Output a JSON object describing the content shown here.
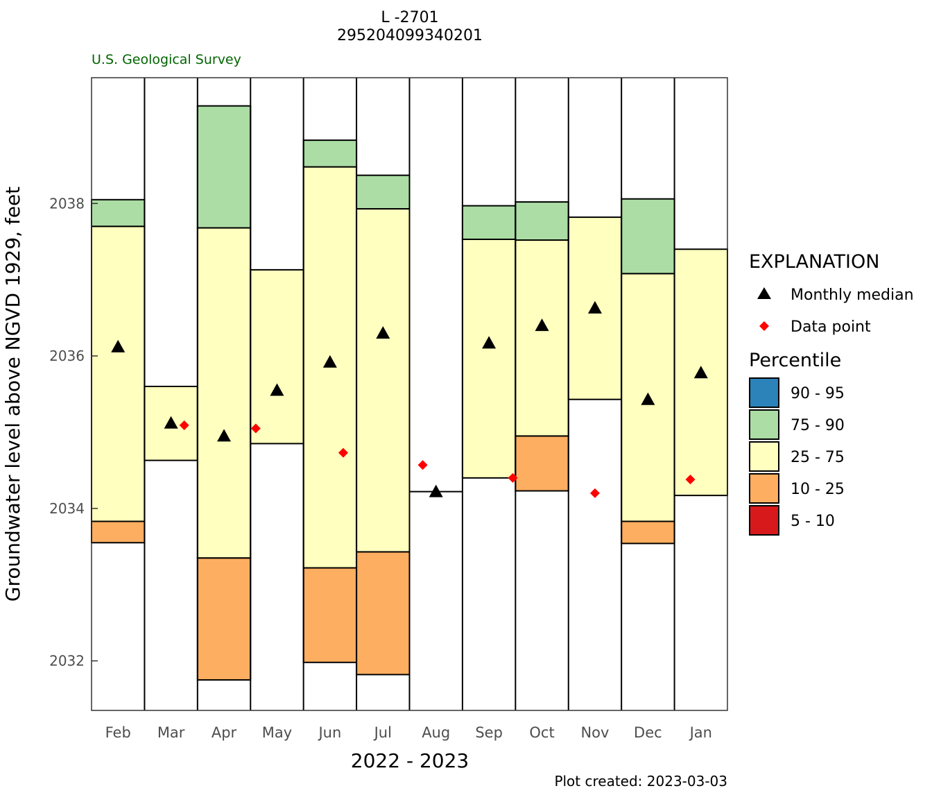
{
  "header": {
    "title_line1": "L -2701",
    "title_line2": "295204099340201",
    "agency": "U.S. Geological Survey"
  },
  "footer": {
    "plot_created": "Plot created: 2023-03-03"
  },
  "colors": {
    "p90_95": "#2B83BA",
    "p75_90": "#ABDDA4",
    "p25_75": "#FFFFBF",
    "p10_25": "#FDAE61",
    "p5_10": "#D7191C",
    "median": "#000000",
    "data_point": "#FF0000",
    "agency_text": "#006400"
  },
  "legend": {
    "title": "EXPLANATION",
    "median_label": "Monthly median",
    "data_point_label": "Data point",
    "percentile_title": "Percentile",
    "percentile_labels": [
      "90 - 95",
      "75 - 90",
      "25 - 75",
      "10 - 25",
      "5 - 10"
    ]
  },
  "chart_data": {
    "type": "bar",
    "title": "L -2701",
    "subtitle": "295204099340201",
    "xlabel": "2022 - 2023",
    "ylabel": "Groundwater level above NGVD 1929, feet",
    "ylim": [
      2031.35,
      2039.65
    ],
    "yticks": [
      2032,
      2034,
      2036,
      2038
    ],
    "categories": [
      "Feb",
      "Mar",
      "Apr",
      "May",
      "Jun",
      "Jul",
      "Aug",
      "Sep",
      "Oct",
      "Nov",
      "Dec",
      "Jan"
    ],
    "percentile_bands": [
      {
        "month": "Feb",
        "p10": 2033.55,
        "p25": 2033.83,
        "p75": 2037.7,
        "p90": 2038.05
      },
      {
        "month": "Mar",
        "p10": null,
        "p25": 2034.63,
        "p75": 2035.6,
        "p90": null
      },
      {
        "month": "Apr",
        "p10": 2031.75,
        "p25": 2033.35,
        "p75": 2037.68,
        "p90": 2039.28
      },
      {
        "month": "May",
        "p10": null,
        "p25": 2034.85,
        "p75": 2037.13,
        "p90": null
      },
      {
        "month": "Jun",
        "p10": 2031.98,
        "p25": 2033.22,
        "p75": 2038.48,
        "p90": 2038.83
      },
      {
        "month": "Jul",
        "p10": 2031.82,
        "p25": 2033.43,
        "p75": 2037.93,
        "p90": 2038.37
      },
      {
        "month": "Aug",
        "p10": null,
        "p25": 2034.22,
        "p75": 2034.22,
        "p90": null
      },
      {
        "month": "Sep",
        "p10": null,
        "p25": 2034.4,
        "p75": 2037.53,
        "p90": 2037.97
      },
      {
        "month": "Oct",
        "p10": 2034.23,
        "p25": 2034.95,
        "p75": 2037.52,
        "p90": 2038.02
      },
      {
        "month": "Nov",
        "p10": null,
        "p25": 2035.43,
        "p75": 2037.82,
        "p90": null
      },
      {
        "month": "Dec",
        "p10": 2033.54,
        "p25": 2033.83,
        "p75": 2037.08,
        "p90": 2038.06
      },
      {
        "month": "Jan",
        "p10": null,
        "p25": 2034.17,
        "p75": 2037.4,
        "p90": null
      }
    ],
    "monthly_median": [
      2036.12,
      2035.12,
      2034.95,
      2035.55,
      2035.92,
      2036.3,
      2034.22,
      2036.17,
      2036.4,
      2036.63,
      2035.43,
      2035.78
    ],
    "data_points": [
      {
        "month": "Mar",
        "offset": 0.25,
        "y": 2035.09
      },
      {
        "month": "May",
        "offset": -0.4,
        "y": 2035.05
      },
      {
        "month": "Jun",
        "offset": 0.25,
        "y": 2034.73
      },
      {
        "month": "Aug",
        "offset": -0.25,
        "y": 2034.57
      },
      {
        "month": "Sep",
        "offset": 0.45,
        "y": 2034.4
      },
      {
        "month": "Nov",
        "offset": 0.0,
        "y": 2034.2
      },
      {
        "month": "Jan",
        "offset": -0.2,
        "y": 2034.38
      }
    ],
    "grid": false,
    "legend_position": "right"
  }
}
